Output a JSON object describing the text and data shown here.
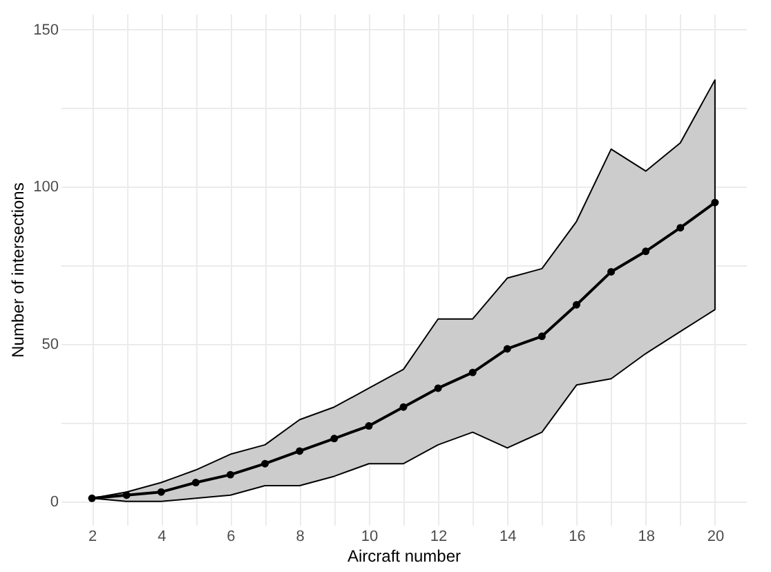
{
  "chart_data": {
    "type": "line",
    "xlabel": "Aircraft number",
    "ylabel": "Number of intersections",
    "x": [
      2,
      3,
      4,
      5,
      6,
      7,
      8,
      9,
      10,
      11,
      12,
      13,
      14,
      15,
      16,
      17,
      18,
      19,
      20
    ],
    "series": [
      {
        "color": "#000000",
        "values": [
          1,
          2,
          3,
          6,
          8.5,
          12,
          16,
          20,
          24,
          30,
          36,
          41,
          48.5,
          52.5,
          62.5,
          73,
          79.5,
          87,
          95
        ],
        "lower": [
          1,
          0,
          0,
          1,
          2,
          5,
          5,
          8,
          12,
          12,
          18,
          22,
          17,
          22,
          37,
          39,
          47,
          54,
          61
        ],
        "upper": [
          1,
          3,
          6,
          10,
          15,
          18,
          26,
          30,
          36,
          42,
          58,
          58,
          71,
          74,
          89,
          112,
          105,
          114,
          134
        ]
      }
    ],
    "xlim": [
      1.1,
      20.9
    ],
    "ylim": [
      -7.5,
      155
    ],
    "xticks": [
      2,
      {
        "value": 3,
        "label": null
      },
      4,
      {
        "value": 5,
        "label": null
      },
      6,
      {
        "value": 7,
        "label": null
      },
      8,
      {
        "value": 9,
        "label": null
      },
      10,
      {
        "value": 11,
        "label": null
      },
      12,
      {
        "value": 13,
        "label": null
      },
      14,
      {
        "value": 15,
        "label": null
      },
      16,
      {
        "value": 17,
        "label": null
      },
      18,
      {
        "value": 19,
        "label": null
      },
      20
    ],
    "yticks": [
      0,
      {
        "value": 25,
        "label": null
      },
      50,
      {
        "value": 75,
        "label": null
      },
      100,
      {
        "value": 125,
        "label": null
      },
      150
    ],
    "grid": true,
    "marker": "circle",
    "line_style": "solid"
  }
}
